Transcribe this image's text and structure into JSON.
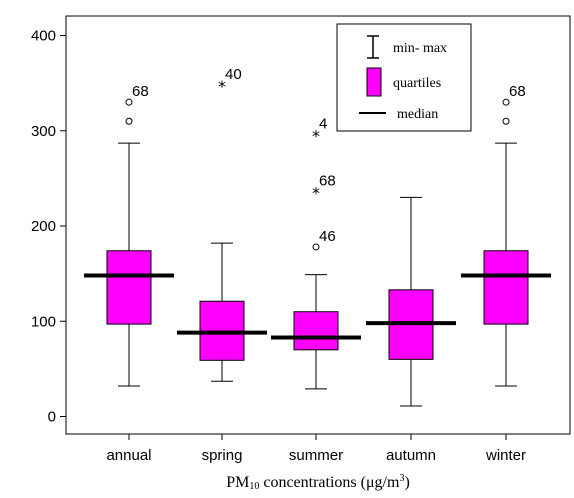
{
  "chart_data": {
    "type": "box",
    "categories": [
      "annual",
      "spring",
      "summer",
      "autumn",
      "winter"
    ],
    "boxes": [
      {
        "category": "annual",
        "min": 32,
        "q1": 97,
        "median": 148,
        "q3": 174,
        "max": 287,
        "outliers": [
          {
            "value": 310,
            "marker": "circle",
            "label": ""
          },
          {
            "value": 330,
            "marker": "circle",
            "label": "68"
          }
        ]
      },
      {
        "category": "spring",
        "min": 37,
        "q1": 59,
        "median": 88,
        "q3": 121,
        "max": 182,
        "outliers": [
          {
            "value": 348,
            "marker": "star",
            "label": "40"
          }
        ]
      },
      {
        "category": "summer",
        "min": 29,
        "q1": 70,
        "median": 83,
        "q3": 110,
        "max": 149,
        "outliers": [
          {
            "value": 178,
            "marker": "circle",
            "label": "46"
          },
          {
            "value": 236,
            "marker": "star",
            "label": "68"
          },
          {
            "value": 296,
            "marker": "star",
            "label": "4"
          }
        ]
      },
      {
        "category": "autumn",
        "min": 11,
        "q1": 60,
        "median": 98,
        "q3": 133,
        "max": 230,
        "outliers": []
      },
      {
        "category": "winter",
        "min": 32,
        "q1": 97,
        "median": 148,
        "q3": 174,
        "max": 287,
        "outliers": [
          {
            "value": 310,
            "marker": "circle",
            "label": ""
          },
          {
            "value": 330,
            "marker": "circle",
            "label": "68"
          }
        ]
      }
    ],
    "yticks": [
      0,
      100,
      200,
      300,
      400
    ],
    "ylim": [
      -18,
      420
    ],
    "xlabel": "PM10 concentrations (μg/m³)",
    "legend": {
      "position": "top-right",
      "items": [
        "min- max",
        "quartiles",
        "median"
      ]
    },
    "box_color": "#ff00ff",
    "grid": false
  }
}
